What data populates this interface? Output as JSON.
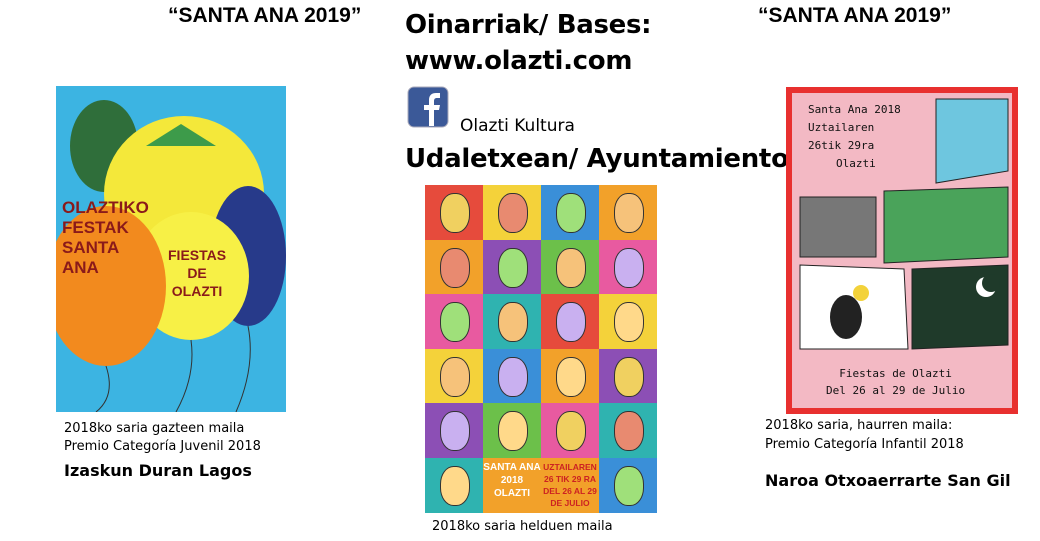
{
  "header": {
    "left_title": "“SANTA ANA 2019”",
    "right_title": "“SANTA ANA 2019”",
    "bases": "Oinarriak/ Bases:",
    "website": "www.olazti.com",
    "facebook": "Olazti Kultura",
    "place": "Udaletxean/ Ayuntamiento"
  },
  "posters": [
    {
      "texts": [
        "OLAZTIKO",
        "FESTAK",
        "SANTA",
        "ANA",
        "FIESTAS",
        "DE",
        "OLAZTI"
      ],
      "caption": [
        "2018ko saria  gazteen maila",
        "Premio Categoría Juvenil 2018"
      ],
      "author": "Izaskun Duran Lagos"
    },
    {
      "texts": [
        "SANTA ANA",
        "2018",
        "OLAZTI",
        "UZTAILAREN",
        "26 TIK 29 RA",
        "DEL 26 AL 29",
        "DE JULIO"
      ],
      "caption": [
        "2018ko saria  helduen maila"
      ]
    },
    {
      "texts": [
        "Santa Ana 2018",
        "Uztailaren",
        "26tik 29ra",
        "Olazti",
        "Fiestas de Olazti",
        "Del 26 al 29 de Julio"
      ],
      "caption": [
        "2018ko saria, haurren maila:",
        "Premio Categoría Infantil 2018"
      ],
      "author": "Naroa Otxoaerrarte San Gil"
    }
  ]
}
